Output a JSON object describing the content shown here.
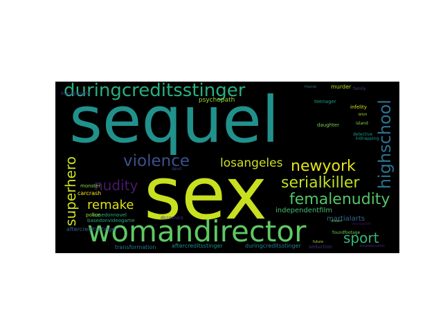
{
  "word_cloud": {
    "words": [
      {
        "id": "sequel",
        "text": "sequel",
        "color": "#21918c"
      },
      {
        "id": "sex",
        "text": "sex",
        "color": "#c8e020"
      },
      {
        "id": "womandirector",
        "text": "womandirector",
        "color": "#5ec962"
      },
      {
        "id": "duringcreditsstinger",
        "text": "duringcreditsstinger",
        "color": "#29af7f"
      },
      {
        "id": "violence",
        "text": "violence",
        "color": "#3b528b"
      },
      {
        "id": "losangeles",
        "text": "losangeles",
        "color": "#d0e11c"
      },
      {
        "id": "newyork",
        "text": "newyork",
        "color": "#e5e419"
      },
      {
        "id": "serialkiller",
        "text": "serialkiller",
        "color": "#c2df23"
      },
      {
        "id": "femalenudity",
        "text": "femalenudity",
        "color": "#52c569"
      },
      {
        "id": "highschool",
        "text": "highschool",
        "color": "#2c728e"
      },
      {
        "id": "superhero",
        "text": "superhero",
        "color": "#cde11d"
      },
      {
        "id": "nudity",
        "text": "nudity",
        "color": "#481a6c"
      },
      {
        "id": "remake",
        "text": "remake",
        "color": "#dde318"
      },
      {
        "id": "sport",
        "text": "sport",
        "color": "#35b779"
      },
      {
        "id": "psychopath",
        "text": "psychopath",
        "color": "#9fda3a"
      },
      {
        "id": "independentfilm",
        "text": "independentfilm",
        "color": "#44bf70"
      },
      {
        "id": "martialarts",
        "text": "martialarts",
        "color": "#31688e"
      },
      {
        "id": "basedonnovel",
        "text": "basedonnovel",
        "color": "#2fb47c"
      },
      {
        "id": "aftercreditsstinger1",
        "text": "aftercreditsstinger",
        "color": "#34618d"
      },
      {
        "id": "aftercreditsstinger2",
        "text": "aftercreditsstinger",
        "color": "#228d8d"
      },
      {
        "id": "duringcreditsstinger2",
        "text": "duringcreditsstinger",
        "color": "#26828e"
      },
      {
        "id": "transformation",
        "text": "transformation",
        "color": "#2a788e"
      },
      {
        "id": "seduction",
        "text": "seduction",
        "color": "#472d7b"
      },
      {
        "id": "carcrash",
        "text": "carcrash",
        "color": "#fde725"
      },
      {
        "id": "police",
        "text": "police",
        "color": "#addc30"
      },
      {
        "id": "monster",
        "text": "monster",
        "color": "#8bd646"
      },
      {
        "id": "dccomics",
        "text": "dccomics",
        "color": "#443983"
      },
      {
        "id": "basedonvideogame",
        "text": "basedonvideogame",
        "color": "#27ad81"
      },
      {
        "id": "devil",
        "text": "devil",
        "color": "#3e4a89"
      },
      {
        "id": "foundfootage",
        "text": "foundfootage",
        "color": "#6ece58"
      },
      {
        "id": "murder",
        "text": "murder",
        "color": "#b5de2b"
      },
      {
        "id": "teenager",
        "text": "teenager",
        "color": "#1f9e89"
      },
      {
        "id": "infelity",
        "text": "infelity",
        "color": "#d8e219"
      },
      {
        "id": "daughter",
        "text": "daughter",
        "color": "#7ad151"
      },
      {
        "id": "detective",
        "text": "detective",
        "color": "#1e9c89"
      },
      {
        "id": "island",
        "text": "island",
        "color": "#86d549"
      },
      {
        "id": "kidnapping",
        "text": "kidnapping",
        "color": "#1f988b"
      },
      {
        "id": "blackpeople",
        "text": "blackpeople",
        "color": "#46337e"
      },
      {
        "id": "family",
        "text": "family",
        "color": "#433e85"
      },
      {
        "id": "bitch",
        "text": "bitch",
        "color": "#addc30"
      },
      {
        "id": "friends",
        "text": "friends",
        "color": "#2e6f8e"
      },
      {
        "id": "future",
        "text": "future",
        "color": "#b0dd2f"
      },
      {
        "id": "dream",
        "text": "dream",
        "color": "#5ac864"
      },
      {
        "id": "youngadult",
        "text": "youngadult",
        "color": "#471164"
      },
      {
        "id": "basedoncomic",
        "text": "basedoncomic",
        "color": "#472a7a"
      }
    ]
  }
}
